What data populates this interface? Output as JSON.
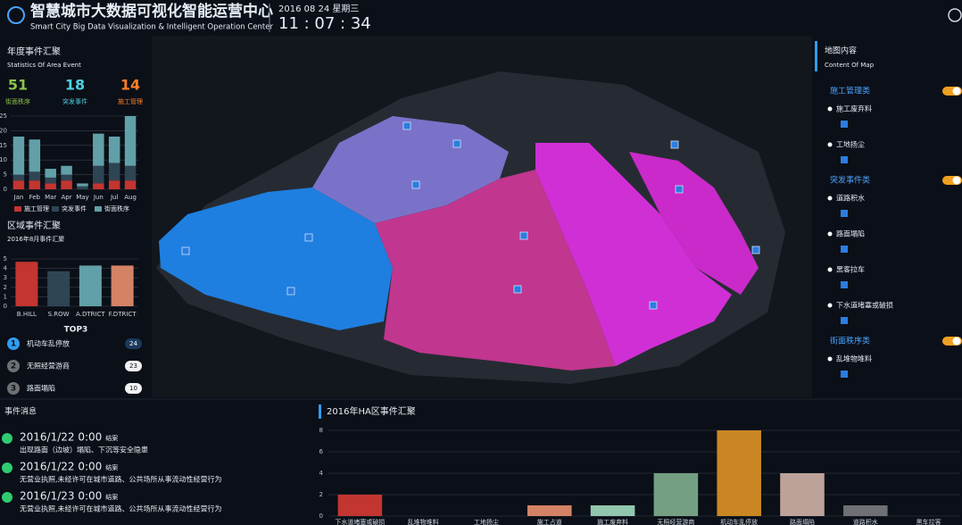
{
  "header": {
    "title": "智慧城市大数据可视化智能运营中心",
    "subtitle": "Smart City Big Data Visualization & Intelligent Operation Center",
    "date": "2016 08 24 星期三",
    "time": "11 : 07 : 34"
  },
  "left_panel": {
    "stats": [
      {
        "value": 51,
        "label": "街面秩序",
        "color": "#8bc34a"
      },
      {
        "value": 18,
        "label": "突发事件",
        "color": "#4dd0e1"
      },
      {
        "value": 14,
        "label": "施工管理",
        "color": "#ff7f27"
      }
    ],
    "top3": {
      "title": "TOP3",
      "items": [
        {
          "rank": 1,
          "name": "机动车乱停放",
          "count": 24
        },
        {
          "rank": 2,
          "name": "无照经营游商",
          "count": 23
        },
        {
          "rank": 3,
          "name": "路面塌陷",
          "count": 10
        }
      ]
    }
  },
  "chart_data": [
    {
      "type": "bar",
      "stacked": true,
      "title": "年度事件汇聚",
      "subtitle": "Statistics Of Area Event",
      "categories": [
        "Jan",
        "Feb",
        "Mar",
        "Apr",
        "May",
        "Jun",
        "Jul",
        "Aug"
      ],
      "series": [
        {
          "name": "施工管理",
          "color": "#c23531",
          "values": [
            3,
            3,
            2,
            3,
            0,
            2,
            3,
            3
          ]
        },
        {
          "name": "突发事件",
          "color": "#2f4554",
          "values": [
            2,
            3,
            2,
            2,
            1,
            6,
            6,
            5
          ]
        },
        {
          "name": "街面秩序",
          "color": "#61a0a8",
          "values": [
            13,
            11,
            3,
            3,
            1,
            11,
            9,
            17
          ]
        }
      ],
      "ylim": [
        0,
        25
      ],
      "yticks": [
        0,
        5,
        10,
        15,
        20,
        25
      ],
      "grid": true
    },
    {
      "type": "bar",
      "title": "区域事件汇聚",
      "subtitle": "2016年8月事件汇聚",
      "categories": [
        "B.HILL",
        "S.ROW",
        "A.DTRICT",
        "F.DTRICT"
      ],
      "values": [
        4.7,
        3.7,
        4.3,
        4.3
      ],
      "colors": [
        "#c23531",
        "#2f4554",
        "#61a0a8",
        "#d48265"
      ],
      "ylim": [
        0,
        5
      ],
      "yticks": [
        0,
        1,
        2,
        3,
        4,
        5
      ],
      "grid": true
    },
    {
      "type": "bar",
      "title": "2016年HA区事件汇聚",
      "categories": [
        "下水道堵塞或破损",
        "乱堆物堆料",
        "工地扬尘",
        "施工占道",
        "施工废弃料",
        "无照经营游商",
        "机动车乱停放",
        "路面塌陷",
        "道路积水",
        "黑车拉客"
      ],
      "values": [
        2,
        0,
        0,
        1,
        1,
        4,
        8,
        4,
        1,
        0
      ],
      "colors": [
        "#c23531",
        "#2f4554",
        "#61a0a8",
        "#d48265",
        "#91c7ae",
        "#749f83",
        "#ca8622",
        "#bda29a",
        "#6e7074",
        "#546570"
      ],
      "ylim": [
        0,
        8
      ],
      "yticks": [
        0,
        2,
        4,
        6,
        8
      ],
      "grid": true
    }
  ],
  "events": {
    "title": "事件消息",
    "items": [
      {
        "time": "2016/1/22 0:00",
        "status": "结案",
        "text": "出现路面（边坡）塌陷、下沉等安全隐患"
      },
      {
        "time": "2016/1/22 0:00",
        "status": "结案",
        "text": "无营业执照,未经许可在城市道路、公共场所从事流动性经营行为"
      },
      {
        "time": "2016/1/23 0:00",
        "status": "结案",
        "text": "无营业执照,未经许可在城市道路、公共场所从事流动性经营行为"
      }
    ]
  },
  "map_content": {
    "title": "地图内容",
    "subtitle": "Content Of Map",
    "groups": [
      {
        "name": "施工管理类",
        "items": [
          "施工废弃料",
          "工地扬尘"
        ]
      },
      {
        "name": "突发事件类",
        "items": [
          "道路积水",
          "路面塌陷",
          "黑客拉车",
          "下水道堵塞或破损"
        ]
      },
      {
        "name": "街面秩序类",
        "items": [
          "乱堆物堆料"
        ]
      }
    ]
  }
}
